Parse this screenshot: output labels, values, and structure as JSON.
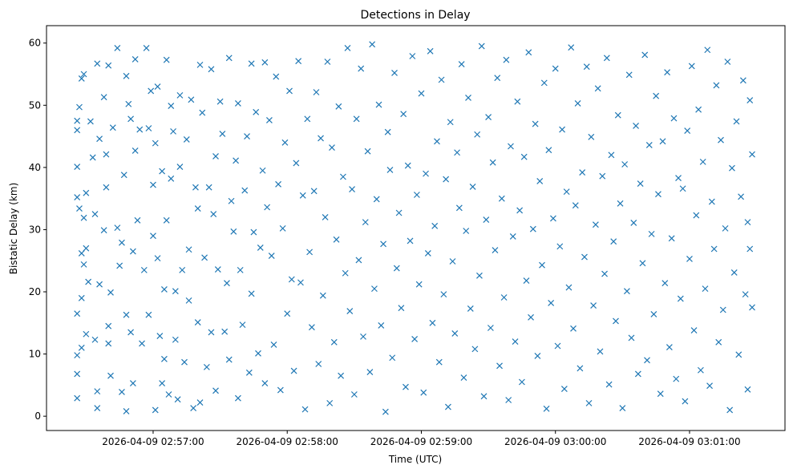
{
  "chart_data": {
    "type": "scatter",
    "title": "Detections in Delay",
    "xlabel": "Time (UTC)",
    "ylabel": "Bistatic Delay (km)",
    "x_base": "2026-04-09 02:56:00",
    "x_unit": "seconds after x_base",
    "xlim": [
      12.3,
      342.7
    ],
    "ylim": [
      -2.3,
      62.8
    ],
    "xticks": [
      {
        "value": 60,
        "label": "2026-04-09 02:57:00"
      },
      {
        "value": 120,
        "label": "2026-04-09 02:58:00"
      },
      {
        "value": 180,
        "label": "2026-04-09 02:59:00"
      },
      {
        "value": 240,
        "label": "2026-04-09 03:00:00"
      },
      {
        "value": 300,
        "label": "2026-04-09 03:01:00"
      }
    ],
    "yticks": [
      {
        "value": 0,
        "label": "0"
      },
      {
        "value": 10,
        "label": "10"
      },
      {
        "value": 20,
        "label": "20"
      },
      {
        "value": 30,
        "label": "30"
      },
      {
        "value": 40,
        "label": "40"
      },
      {
        "value": 50,
        "label": "50"
      },
      {
        "value": 60,
        "label": "60"
      }
    ],
    "grid": false,
    "marker": "x",
    "color": "#1f77b4",
    "points": [
      [
        26,
        40.1
      ],
      [
        26,
        46
      ],
      [
        26,
        47.5
      ],
      [
        26,
        35.2
      ],
      [
        26,
        16.5
      ],
      [
        26,
        9.8
      ],
      [
        26,
        6.8
      ],
      [
        26,
        2.9
      ],
      [
        27,
        49.7
      ],
      [
        27,
        33.4
      ],
      [
        28,
        54.3
      ],
      [
        28,
        26.2
      ],
      [
        28,
        19
      ],
      [
        28,
        11
      ],
      [
        29,
        55
      ],
      [
        29,
        31.9
      ],
      [
        29,
        24.4
      ],
      [
        30,
        35.9
      ],
      [
        30,
        27
      ],
      [
        30,
        13.2
      ],
      [
        31,
        21.6
      ],
      [
        32,
        47.4
      ],
      [
        33,
        41.6
      ],
      [
        34,
        12.3
      ],
      [
        34,
        32.5
      ],
      [
        35,
        56.7
      ],
      [
        35,
        4
      ],
      [
        35,
        1.3
      ],
      [
        36,
        44.6
      ],
      [
        36,
        21.2
      ],
      [
        38,
        51.3
      ],
      [
        38,
        29.9
      ],
      [
        39,
        42.1
      ],
      [
        39,
        36.8
      ],
      [
        40,
        56.4
      ],
      [
        40,
        14.5
      ],
      [
        40,
        11.7
      ],
      [
        41,
        19.9
      ],
      [
        41,
        6.5
      ],
      [
        42,
        46.4
      ],
      [
        44,
        59.2
      ],
      [
        44,
        30.3
      ],
      [
        45,
        24.2
      ],
      [
        46,
        27.9
      ],
      [
        46,
        3.9
      ],
      [
        47,
        38.8
      ],
      [
        48,
        54.7
      ],
      [
        48,
        16.3
      ],
      [
        48,
        0.8
      ],
      [
        49,
        50.2
      ],
      [
        50,
        47.8
      ],
      [
        50,
        13.5
      ],
      [
        51,
        26.5
      ],
      [
        51,
        5.3
      ],
      [
        52,
        57.4
      ],
      [
        52,
        42.7
      ],
      [
        53,
        31.5
      ],
      [
        54,
        46.1
      ],
      [
        55,
        11.7
      ],
      [
        56,
        23.5
      ],
      [
        57,
        59.2
      ],
      [
        58,
        46.3
      ],
      [
        58,
        16.3
      ],
      [
        59,
        52.3
      ],
      [
        60,
        37.2
      ],
      [
        60,
        29
      ],
      [
        61,
        43.9
      ],
      [
        61,
        1
      ],
      [
        62,
        25.4
      ],
      [
        62,
        53
      ],
      [
        63,
        12.9
      ],
      [
        64,
        39.4
      ],
      [
        64,
        5.3
      ],
      [
        65,
        20.4
      ],
      [
        65,
        9.2
      ],
      [
        66,
        57.3
      ],
      [
        66,
        31.5
      ],
      [
        67,
        3.5
      ],
      [
        68,
        49.9
      ],
      [
        68,
        38.2
      ],
      [
        69,
        45.8
      ],
      [
        70,
        20.1
      ],
      [
        70,
        12.3
      ],
      [
        71,
        2.7
      ],
      [
        72,
        51.6
      ],
      [
        72,
        40.1
      ],
      [
        73,
        23.5
      ],
      [
        74,
        8.7
      ],
      [
        75,
        44.5
      ],
      [
        76,
        26.8
      ],
      [
        76,
        18.6
      ],
      [
        77,
        50.9
      ],
      [
        78,
        1.3
      ],
      [
        79,
        36.8
      ],
      [
        80,
        33.4
      ],
      [
        80,
        15.1
      ],
      [
        81,
        56.5
      ],
      [
        81,
        2.2
      ],
      [
        82,
        48.8
      ],
      [
        83,
        25.5
      ],
      [
        84,
        7.9
      ],
      [
        85,
        36.8
      ],
      [
        86,
        55.8
      ],
      [
        86,
        13.5
      ],
      [
        87,
        32.5
      ],
      [
        88,
        41.8
      ],
      [
        88,
        4.1
      ],
      [
        89,
        23.6
      ],
      [
        90,
        50.6
      ],
      [
        91,
        45.4
      ],
      [
        92,
        13.6
      ],
      [
        93,
        21.4
      ],
      [
        94,
        57.6
      ],
      [
        94,
        9.1
      ],
      [
        95,
        34.6
      ],
      [
        96,
        29.7
      ],
      [
        97,
        41.1
      ],
      [
        98,
        50.3
      ],
      [
        98,
        2.9
      ],
      [
        99,
        23.5
      ],
      [
        100,
        14.7
      ],
      [
        101,
        36.3
      ],
      [
        102,
        45
      ],
      [
        103,
        7
      ],
      [
        104,
        56.7
      ],
      [
        104,
        19.7
      ],
      [
        105,
        29.6
      ],
      [
        106,
        48.9
      ],
      [
        107,
        10.1
      ],
      [
        108,
        27.1
      ],
      [
        109,
        39.5
      ],
      [
        110,
        56.9
      ],
      [
        110,
        5.3
      ],
      [
        111,
        33.6
      ],
      [
        112,
        47.6
      ],
      [
        113,
        25.8
      ],
      [
        114,
        11.5
      ],
      [
        115,
        54.6
      ],
      [
        116,
        37.3
      ],
      [
        117,
        4.2
      ],
      [
        118,
        30.2
      ],
      [
        119,
        44
      ],
      [
        120,
        16.5
      ],
      [
        121,
        52.3
      ],
      [
        122,
        22
      ],
      [
        123,
        7.3
      ],
      [
        124,
        40.7
      ],
      [
        125,
        57.1
      ],
      [
        126,
        21.5
      ],
      [
        127,
        35.5
      ],
      [
        128,
        1.1
      ],
      [
        129,
        47.8
      ],
      [
        130,
        26.4
      ],
      [
        131,
        14.3
      ],
      [
        132,
        36.2
      ],
      [
        133,
        52.1
      ],
      [
        134,
        8.4
      ],
      [
        135,
        44.7
      ],
      [
        136,
        19.4
      ],
      [
        137,
        32
      ],
      [
        138,
        57
      ],
      [
        139,
        2.1
      ],
      [
        140,
        43.2
      ],
      [
        141,
        11.9
      ],
      [
        142,
        28.4
      ],
      [
        143,
        49.8
      ],
      [
        144,
        6.5
      ],
      [
        145,
        38.5
      ],
      [
        146,
        23
      ],
      [
        147,
        59.2
      ],
      [
        148,
        16.9
      ],
      [
        149,
        36.5
      ],
      [
        150,
        3.5
      ],
      [
        151,
        47.8
      ],
      [
        152,
        25.1
      ],
      [
        153,
        55.9
      ],
      [
        154,
        12.8
      ],
      [
        155,
        31.2
      ],
      [
        156,
        42.6
      ],
      [
        157,
        7.1
      ],
      [
        158,
        59.8
      ],
      [
        159,
        20.5
      ],
      [
        160,
        34.9
      ],
      [
        161,
        50.1
      ],
      [
        162,
        14.6
      ],
      [
        163,
        27.7
      ],
      [
        164,
        0.7
      ],
      [
        165,
        45.7
      ],
      [
        166,
        39.6
      ],
      [
        167,
        9.4
      ],
      [
        168,
        55.2
      ],
      [
        169,
        23.8
      ],
      [
        170,
        32.7
      ],
      [
        171,
        17.4
      ],
      [
        172,
        48.6
      ],
      [
        173,
        4.7
      ],
      [
        174,
        40.3
      ],
      [
        175,
        28.2
      ],
      [
        176,
        57.9
      ],
      [
        177,
        12.4
      ],
      [
        178,
        35.6
      ],
      [
        179,
        21.2
      ],
      [
        180,
        51.9
      ],
      [
        181,
        3.8
      ],
      [
        182,
        39
      ],
      [
        183,
        26.2
      ],
      [
        184,
        58.7
      ],
      [
        185,
        15
      ],
      [
        186,
        30.6
      ],
      [
        187,
        44.2
      ],
      [
        188,
        8.7
      ],
      [
        189,
        54.1
      ],
      [
        190,
        19.6
      ],
      [
        191,
        38.1
      ],
      [
        192,
        1.5
      ],
      [
        193,
        47.3
      ],
      [
        194,
        24.9
      ],
      [
        195,
        13.3
      ],
      [
        196,
        42.4
      ],
      [
        197,
        33.5
      ],
      [
        198,
        56.6
      ],
      [
        199,
        6.2
      ],
      [
        200,
        29.8
      ],
      [
        201,
        51.2
      ],
      [
        202,
        17.3
      ],
      [
        203,
        36.9
      ],
      [
        204,
        10.8
      ],
      [
        205,
        45.3
      ],
      [
        206,
        22.6
      ],
      [
        207,
        59.5
      ],
      [
        208,
        3.2
      ],
      [
        209,
        31.6
      ],
      [
        210,
        48.1
      ],
      [
        211,
        14.2
      ],
      [
        212,
        40.8
      ],
      [
        213,
        26.7
      ],
      [
        214,
        54.4
      ],
      [
        215,
        8.1
      ],
      [
        216,
        35
      ],
      [
        217,
        19.1
      ],
      [
        218,
        57.3
      ],
      [
        219,
        2.6
      ],
      [
        220,
        43.4
      ],
      [
        221,
        28.9
      ],
      [
        222,
        12
      ],
      [
        223,
        50.6
      ],
      [
        224,
        33.1
      ],
      [
        225,
        5.5
      ],
      [
        226,
        41.7
      ],
      [
        227,
        21.8
      ],
      [
        228,
        58.5
      ],
      [
        229,
        15.9
      ],
      [
        230,
        30.1
      ],
      [
        231,
        47
      ],
      [
        232,
        9.7
      ],
      [
        233,
        37.8
      ],
      [
        234,
        24.3
      ],
      [
        235,
        53.6
      ],
      [
        236,
        1.2
      ],
      [
        237,
        42.8
      ],
      [
        238,
        18.2
      ],
      [
        239,
        31.8
      ],
      [
        240,
        55.9
      ],
      [
        241,
        11.3
      ],
      [
        242,
        27.3
      ],
      [
        243,
        46.1
      ],
      [
        244,
        4.4
      ],
      [
        245,
        36.1
      ],
      [
        246,
        20.7
      ],
      [
        247,
        59.3
      ],
      [
        248,
        14.1
      ],
      [
        249,
        33.9
      ],
      [
        250,
        50.3
      ],
      [
        251,
        7.7
      ],
      [
        252,
        39.2
      ],
      [
        253,
        25.6
      ],
      [
        254,
        56.2
      ],
      [
        255,
        2.1
      ],
      [
        256,
        44.9
      ],
      [
        257,
        17.8
      ],
      [
        258,
        30.8
      ],
      [
        259,
        52.7
      ],
      [
        260,
        10.4
      ],
      [
        261,
        38.6
      ],
      [
        262,
        22.9
      ],
      [
        263,
        57.6
      ],
      [
        264,
        5.1
      ],
      [
        265,
        42
      ],
      [
        266,
        28.1
      ],
      [
        267,
        15.3
      ],
      [
        268,
        48.4
      ],
      [
        269,
        34.2
      ],
      [
        270,
        1.3
      ],
      [
        271,
        40.5
      ],
      [
        272,
        20.1
      ],
      [
        273,
        54.9
      ],
      [
        274,
        12.6
      ],
      [
        275,
        31.1
      ],
      [
        276,
        46.7
      ],
      [
        277,
        6.8
      ],
      [
        278,
        37.4
      ],
      [
        279,
        24.6
      ],
      [
        280,
        58.1
      ],
      [
        281,
        9
      ],
      [
        282,
        43.6
      ],
      [
        283,
        29.3
      ],
      [
        284,
        16.4
      ],
      [
        285,
        51.5
      ],
      [
        286,
        35.7
      ],
      [
        287,
        3.6
      ],
      [
        288,
        44.2
      ],
      [
        289,
        21.4
      ],
      [
        290,
        55.3
      ],
      [
        291,
        11.1
      ],
      [
        292,
        28.6
      ],
      [
        293,
        47.9
      ],
      [
        294,
        6
      ],
      [
        295,
        38.3
      ],
      [
        296,
        18.9
      ],
      [
        297,
        36.6
      ],
      [
        298,
        2.4
      ],
      [
        299,
        45.9
      ],
      [
        300,
        25.3
      ],
      [
        301,
        56.3
      ],
      [
        302,
        13.8
      ],
      [
        303,
        32.3
      ],
      [
        304,
        49.3
      ],
      [
        305,
        7.4
      ],
      [
        306,
        40.9
      ],
      [
        307,
        20.5
      ],
      [
        308,
        58.9
      ],
      [
        309,
        4.9
      ],
      [
        310,
        34.5
      ],
      [
        311,
        26.9
      ],
      [
        312,
        53.2
      ],
      [
        313,
        11.9
      ],
      [
        314,
        44.4
      ],
      [
        315,
        17.1
      ],
      [
        316,
        30.2
      ],
      [
        317,
        57
      ],
      [
        318,
        1
      ],
      [
        319,
        39.9
      ],
      [
        320,
        23.1
      ],
      [
        321,
        47.4
      ],
      [
        322,
        9.9
      ],
      [
        323,
        35.3
      ],
      [
        324,
        54
      ],
      [
        325,
        19.6
      ],
      [
        326,
        31.2
      ],
      [
        326,
        4.3
      ],
      [
        327,
        26.9
      ],
      [
        327,
        50.8
      ],
      [
        328,
        17.5
      ],
      [
        328,
        42.1
      ]
    ]
  }
}
